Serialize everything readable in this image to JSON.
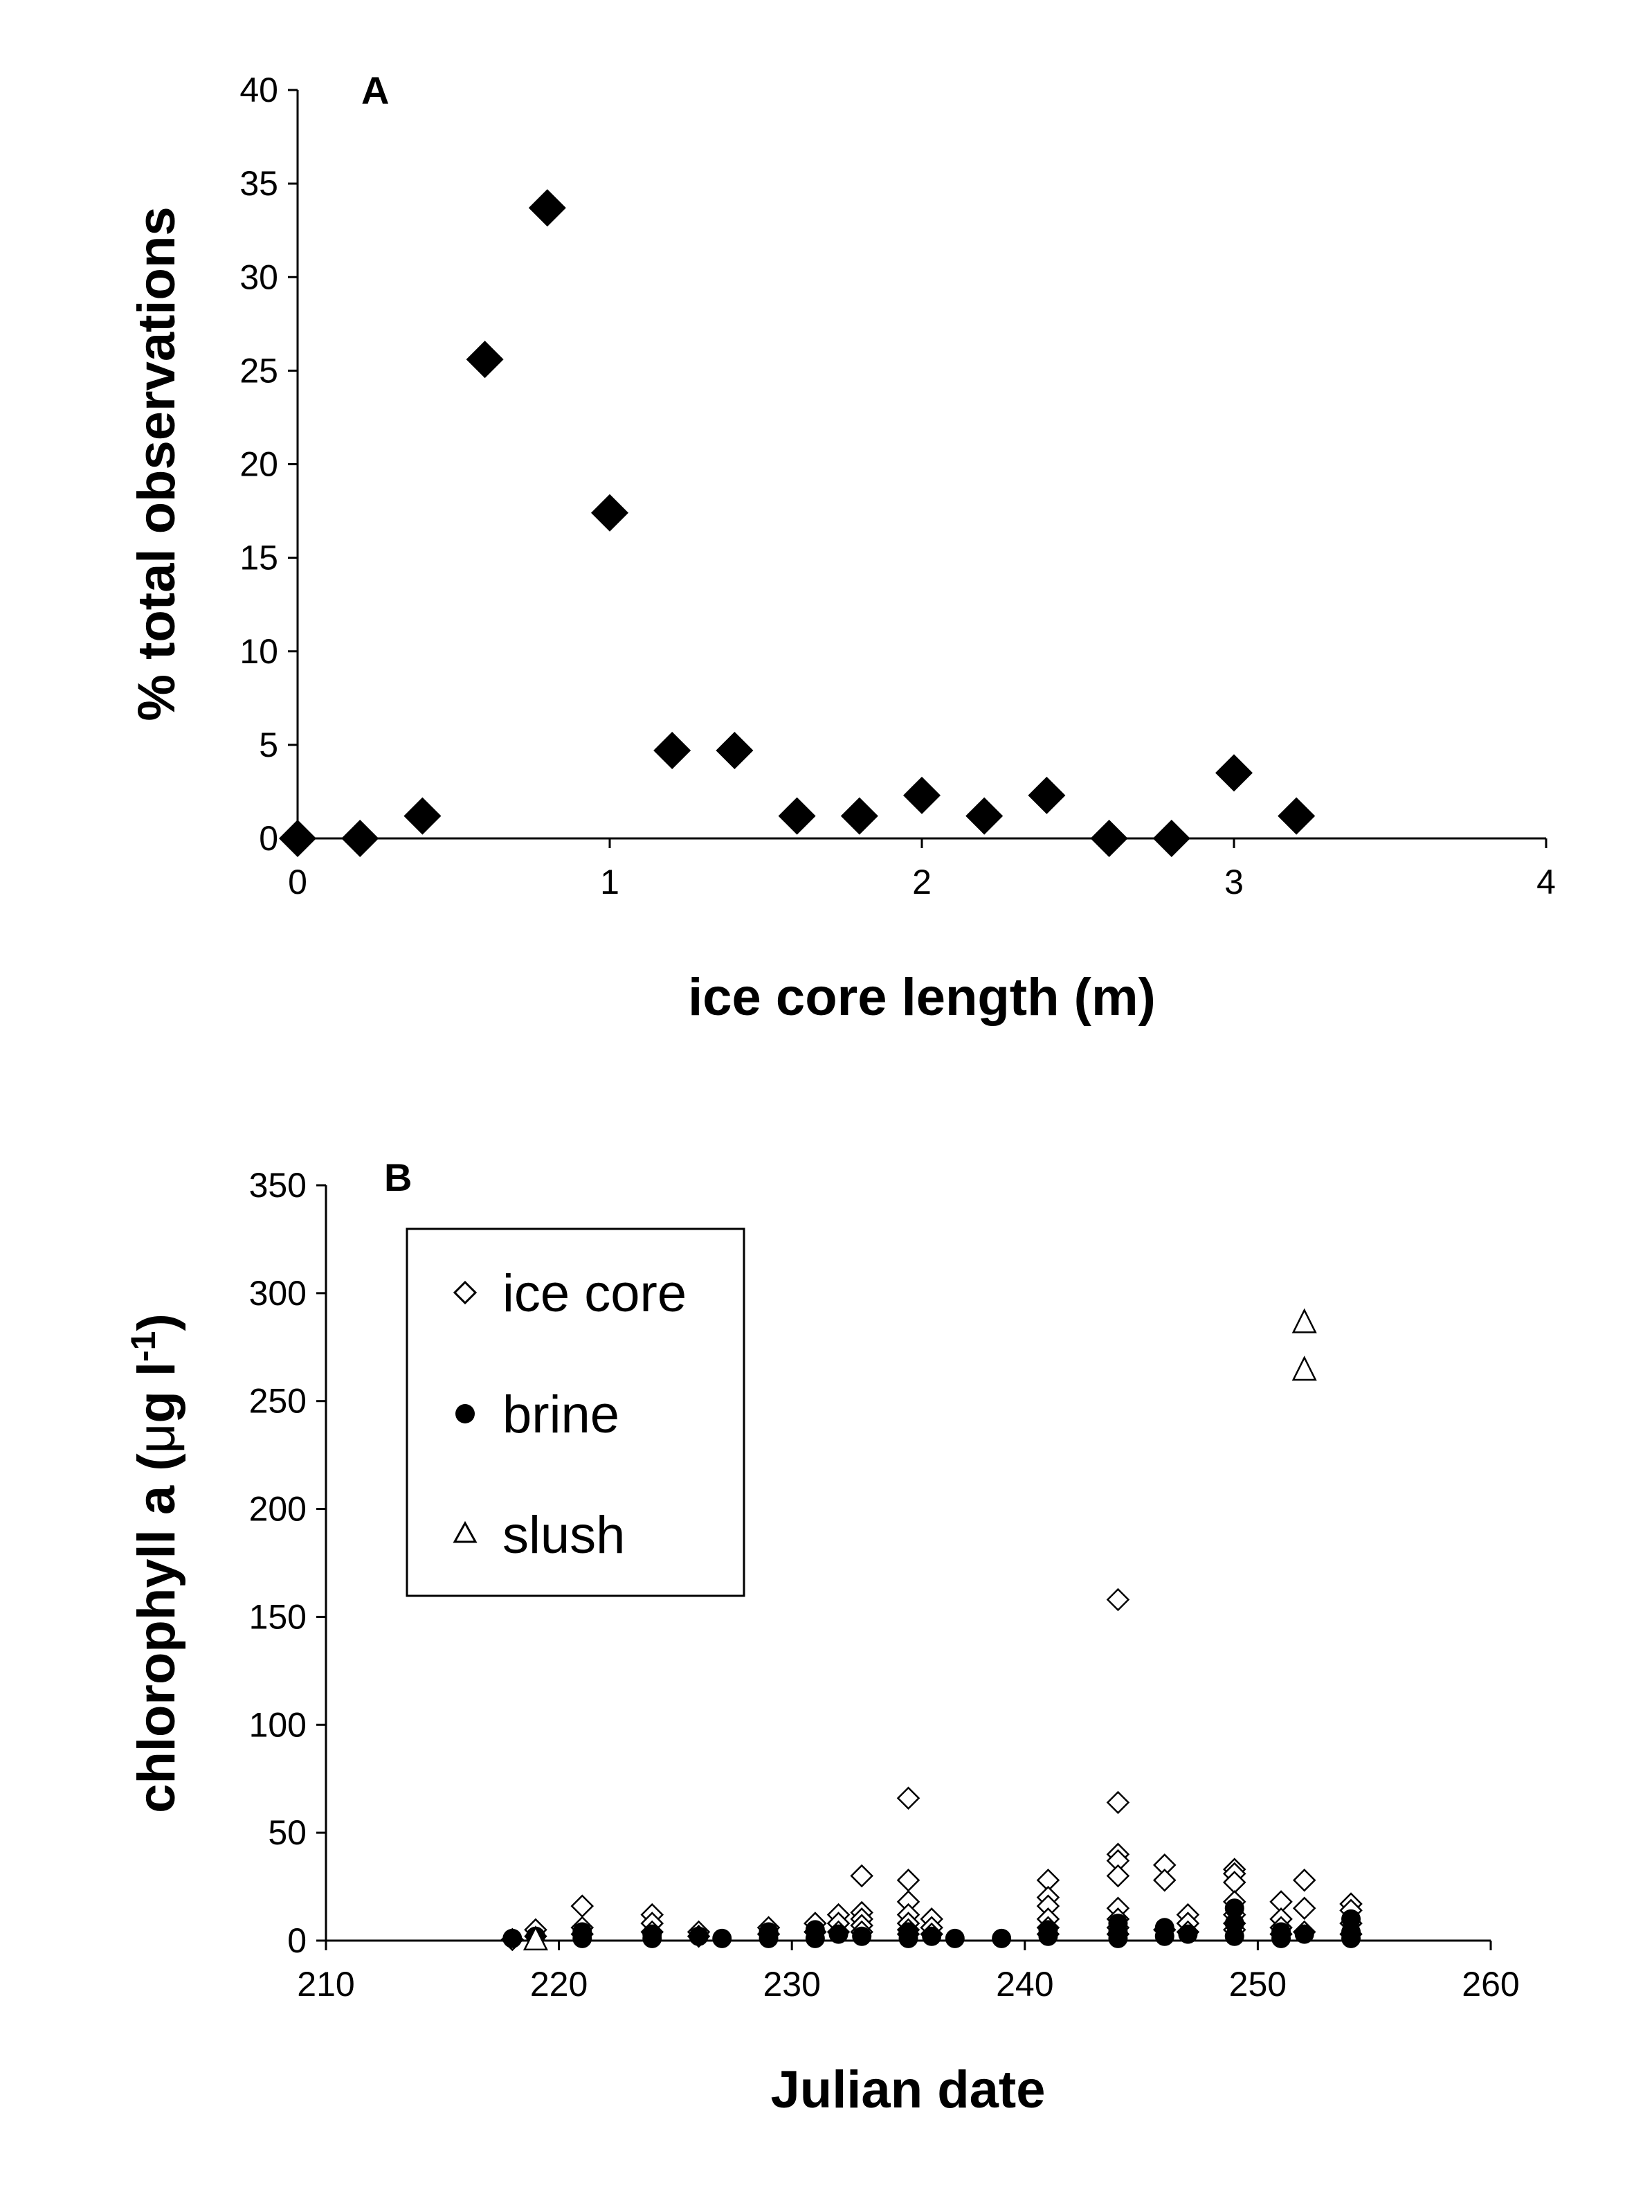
{
  "chart_data": [
    {
      "panel_label": "A",
      "type": "scatter",
      "xlabel": "ice core length (m)",
      "ylabel": "% total observations",
      "xlim": [
        0,
        4
      ],
      "ylim": [
        0,
        40
      ],
      "xticks": [
        "0",
        "1",
        "2",
        "3",
        "4"
      ],
      "yticks": [
        "0",
        "5",
        "10",
        "15",
        "20",
        "25",
        "30",
        "35",
        "40"
      ],
      "grid": false,
      "series": [
        {
          "marker": "filled-diamond",
          "x": [
            0,
            0.2,
            0.4,
            0.6,
            0.8,
            1.0,
            1.2,
            1.4,
            1.6,
            1.8,
            2.0,
            2.2,
            2.4,
            2.6,
            2.8,
            3.0,
            3.2
          ],
          "y": [
            0,
            0,
            1.2,
            25.6,
            33.7,
            17.4,
            4.7,
            4.7,
            1.2,
            1.2,
            2.3,
            1.2,
            2.3,
            0,
            0,
            3.5,
            1.2
          ]
        }
      ]
    },
    {
      "panel_label": "B",
      "type": "scatter",
      "xlabel": "Julian date",
      "ylabel_main": "chlorophyll a (",
      "ylabel_mu": "μ",
      "ylabel_unit": "g l",
      "ylabel_sup": "-1",
      "ylabel_close": ")",
      "xlim": [
        210,
        260
      ],
      "ylim": [
        0,
        350
      ],
      "xticks": [
        "210",
        "220",
        "230",
        "240",
        "250",
        "260"
      ],
      "yticks": [
        "0",
        "50",
        "100",
        "150",
        "200",
        "250",
        "300",
        "350"
      ],
      "grid": false,
      "legend_position": "top-left",
      "series": [
        {
          "name": "ice core",
          "marker": "open-diamond",
          "x": [
            218,
            219,
            219,
            221,
            221,
            221,
            224,
            224,
            224,
            226,
            226,
            229,
            229,
            231,
            231,
            232,
            232,
            232,
            233,
            233,
            233,
            233,
            233,
            235,
            235,
            235,
            235,
            235,
            235,
            235,
            236,
            236,
            236,
            241,
            241,
            241,
            241,
            241,
            241,
            244,
            244,
            244,
            244,
            244,
            244,
            244,
            244,
            244,
            246,
            246,
            246,
            247,
            247,
            247,
            249,
            249,
            249,
            249,
            249,
            249,
            249,
            251,
            251,
            251,
            251,
            252,
            252,
            252,
            254,
            254,
            254,
            254
          ],
          "y": [
            0.5,
            2,
            5,
            16,
            6,
            3,
            12,
            8,
            4,
            4,
            2,
            6,
            3,
            8,
            4,
            12,
            8,
            4,
            30,
            13,
            10,
            7,
            4,
            66,
            28,
            18,
            12,
            8,
            5,
            3,
            10,
            6,
            3,
            28,
            20,
            16,
            10,
            6,
            3,
            158,
            64,
            40,
            37,
            30,
            15,
            10,
            6,
            3,
            35,
            28,
            5,
            12,
            8,
            4,
            33,
            31,
            27,
            18,
            12,
            8,
            5,
            18,
            10,
            6,
            3,
            28,
            15,
            4,
            17,
            14,
            8,
            3
          ]
        },
        {
          "name": "brine",
          "marker": "filled-circle",
          "x": [
            218,
            219,
            221,
            221,
            224,
            224,
            226,
            227,
            229,
            229,
            231,
            231,
            232,
            233,
            235,
            235,
            236,
            237,
            239,
            241,
            241,
            244,
            244,
            244,
            246,
            246,
            247,
            249,
            249,
            249,
            251,
            251,
            252,
            254,
            254,
            254
          ],
          "y": [
            1,
            2,
            4,
            1,
            3,
            1,
            2,
            1,
            4,
            1,
            5,
            1,
            3,
            2,
            4,
            1,
            2,
            1,
            1,
            5,
            2,
            8,
            4,
            1,
            6,
            2,
            3,
            15,
            8,
            2,
            4,
            1,
            3,
            10,
            4,
            1
          ]
        },
        {
          "name": "slush",
          "marker": "open-triangle",
          "x": [
            219,
            252,
            252
          ],
          "y": [
            1,
            287,
            265
          ]
        }
      ]
    }
  ]
}
